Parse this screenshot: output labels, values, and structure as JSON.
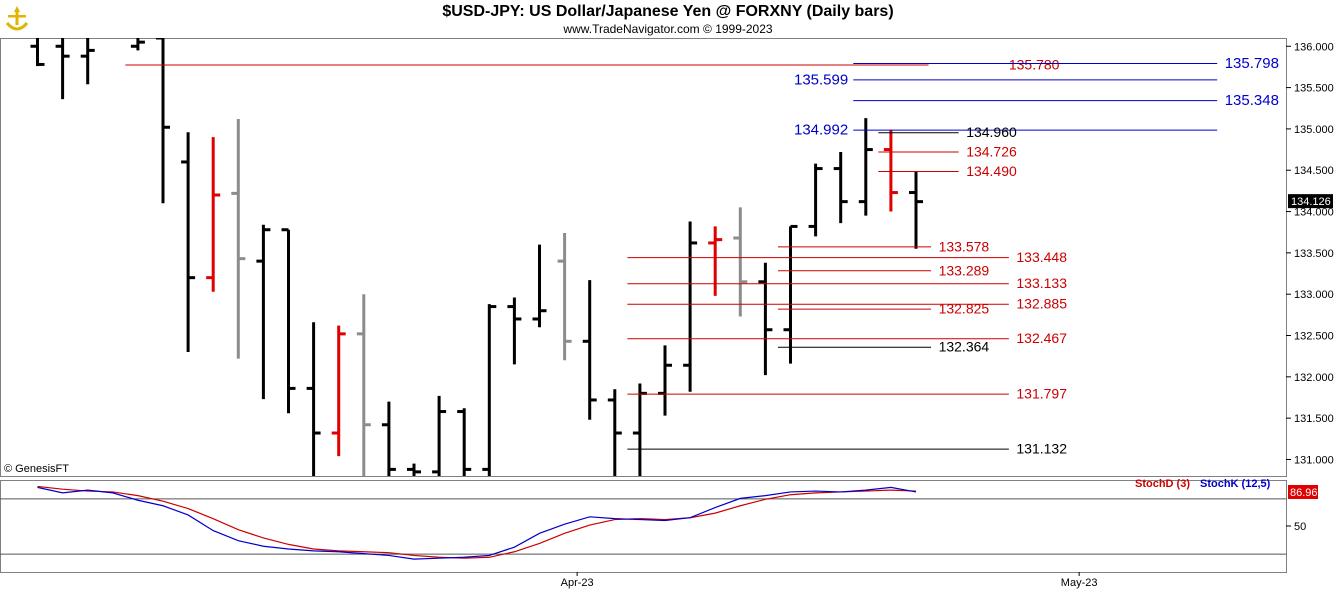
{
  "header": {
    "title": "$USD-JPY:  US Dollar/Japanese Yen @ FORXNY  (Daily bars)",
    "subtitle": "www.TradeNavigator.com © 1999-2023"
  },
  "credit": "© GenesisFT",
  "chart_data": [
    {
      "type": "ohlc",
      "ylim": [
        130.8,
        136.1
      ],
      "y_ticks": [
        "136.000",
        "135.500",
        "135.000",
        "134.500",
        "134.000",
        "133.500",
        "133.000",
        "132.500",
        "132.000",
        "131.500",
        "131.000"
      ],
      "y_tick_values": [
        136.0,
        135.5,
        135.0,
        134.5,
        134.0,
        133.5,
        133.0,
        132.5,
        132.0,
        131.5,
        131.0
      ],
      "x_labels": [
        {
          "label": "Apr-23",
          "index": 21.5
        },
        {
          "label": "May-23",
          "index": 41.5
        }
      ],
      "last_price": "134.126",
      "last_price_value": 134.126,
      "colors": {
        "normal": "#000000",
        "red": "#e00000",
        "gray": "#8c8c8c",
        "level_red": "#cc0000",
        "level_blue": "#0000cc",
        "level_black": "#000000"
      },
      "bars": [
        {
          "i": 0,
          "o": 136.0,
          "h": 136.1,
          "l": 135.76,
          "c": 135.78,
          "color": "normal"
        },
        {
          "i": 1,
          "o": 136.0,
          "h": 136.1,
          "l": 135.36,
          "c": 135.88,
          "color": "normal"
        },
        {
          "i": 2,
          "o": 135.88,
          "h": 136.1,
          "l": 135.54,
          "c": 135.95,
          "color": "normal"
        },
        {
          "i": 4,
          "o": 136.0,
          "h": 136.1,
          "l": 135.95,
          "c": 136.05,
          "color": "normal"
        },
        {
          "i": 5,
          "o": 136.1,
          "h": 136.1,
          "l": 134.1,
          "c": 135.02,
          "color": "normal"
        },
        {
          "i": 6,
          "o": 134.6,
          "h": 134.96,
          "l": 132.3,
          "c": 133.2,
          "color": "normal"
        },
        {
          "i": 7,
          "o": 133.2,
          "h": 134.9,
          "l": 133.03,
          "c": 134.2,
          "color": "red"
        },
        {
          "i": 8,
          "o": 134.22,
          "h": 135.12,
          "l": 132.22,
          "c": 133.43,
          "color": "gray"
        },
        {
          "i": 9,
          "o": 133.4,
          "h": 133.84,
          "l": 131.73,
          "c": 133.78,
          "color": "normal"
        },
        {
          "i": 10,
          "o": 133.78,
          "h": 133.78,
          "l": 131.56,
          "c": 131.86,
          "color": "normal"
        },
        {
          "i": 11,
          "o": 131.86,
          "h": 132.66,
          "l": 130.8,
          "c": 131.32,
          "color": "normal"
        },
        {
          "i": 12,
          "o": 131.32,
          "h": 132.62,
          "l": 131.04,
          "c": 132.52,
          "color": "red"
        },
        {
          "i": 13,
          "o": 132.52,
          "h": 133.0,
          "l": 130.8,
          "c": 131.42,
          "color": "gray"
        },
        {
          "i": 14,
          "o": 131.42,
          "h": 131.7,
          "l": 130.8,
          "c": 130.88,
          "color": "normal"
        },
        {
          "i": 15,
          "o": 130.88,
          "h": 130.95,
          "l": 130.8,
          "c": 130.85,
          "color": "normal"
        },
        {
          "i": 16,
          "o": 130.85,
          "h": 131.77,
          "l": 130.8,
          "c": 131.58,
          "color": "normal"
        },
        {
          "i": 17,
          "o": 131.58,
          "h": 131.62,
          "l": 130.8,
          "c": 130.88,
          "color": "normal"
        },
        {
          "i": 18,
          "o": 130.88,
          "h": 132.88,
          "l": 130.8,
          "c": 132.85,
          "color": "normal"
        },
        {
          "i": 19,
          "o": 132.85,
          "h": 132.96,
          "l": 132.15,
          "c": 132.7,
          "color": "normal"
        },
        {
          "i": 20,
          "o": 132.7,
          "h": 133.6,
          "l": 132.6,
          "c": 132.8,
          "color": "normal"
        },
        {
          "i": 21,
          "o": 133.4,
          "h": 133.74,
          "l": 132.2,
          "c": 132.43,
          "color": "gray"
        },
        {
          "i": 22,
          "o": 132.43,
          "h": 133.17,
          "l": 131.48,
          "c": 131.72,
          "color": "normal"
        },
        {
          "i": 23,
          "o": 131.72,
          "h": 131.85,
          "l": 130.8,
          "c": 131.32,
          "color": "normal"
        },
        {
          "i": 24,
          "o": 131.32,
          "h": 131.92,
          "l": 130.8,
          "c": 131.8,
          "color": "normal"
        },
        {
          "i": 25,
          "o": 131.8,
          "h": 132.38,
          "l": 131.53,
          "c": 132.14,
          "color": "normal"
        },
        {
          "i": 26,
          "o": 132.14,
          "h": 133.88,
          "l": 131.82,
          "c": 133.62,
          "color": "normal"
        },
        {
          "i": 27,
          "o": 133.62,
          "h": 133.82,
          "l": 132.98,
          "c": 133.66,
          "color": "red"
        },
        {
          "i": 28,
          "o": 133.68,
          "h": 134.05,
          "l": 132.73,
          "c": 133.15,
          "color": "gray"
        },
        {
          "i": 29,
          "o": 133.15,
          "h": 133.38,
          "l": 132.02,
          "c": 132.57,
          "color": "normal"
        },
        {
          "i": 30,
          "o": 132.57,
          "h": 133.82,
          "l": 132.16,
          "c": 133.82,
          "color": "normal"
        },
        {
          "i": 31,
          "o": 133.82,
          "h": 134.58,
          "l": 133.7,
          "c": 134.52,
          "color": "normal"
        },
        {
          "i": 32,
          "o": 134.52,
          "h": 134.72,
          "l": 133.86,
          "c": 134.12,
          "color": "normal"
        },
        {
          "i": 33,
          "o": 134.12,
          "h": 135.13,
          "l": 133.95,
          "c": 134.75,
          "color": "normal"
        },
        {
          "i": 34,
          "o": 134.75,
          "h": 134.98,
          "l": 134.0,
          "c": 134.23,
          "color": "red"
        },
        {
          "i": 35,
          "o": 134.23,
          "h": 134.48,
          "l": 133.55,
          "c": 134.12,
          "color": "normal"
        }
      ],
      "levels": [
        {
          "v": 135.78,
          "label": "135.780",
          "color": "red",
          "x0": 3.5,
          "x1": 35.5,
          "lx": 38.7,
          "align": "start"
        },
        {
          "v": 135.798,
          "label": "135.798",
          "color": "blue",
          "x0": 32.5,
          "x1": 47.0,
          "lx": 47.3,
          "align": "start"
        },
        {
          "v": 135.599,
          "label": "135.599",
          "color": "blue",
          "x0": 32.5,
          "x1": 47.0,
          "lx": 32.3,
          "align": "end"
        },
        {
          "v": 135.348,
          "label": "135.348",
          "color": "blue",
          "x0": 32.5,
          "x1": 47.0,
          "lx": 47.3,
          "align": "start"
        },
        {
          "v": 134.992,
          "label": "134.992",
          "color": "blue",
          "x0": 32.5,
          "x1": 47.0,
          "lx": 32.3,
          "align": "end"
        },
        {
          "v": 134.96,
          "label": "134.960",
          "color": "black",
          "x0": 33.5,
          "x1": 36.7,
          "lx": 37.0,
          "align": "start"
        },
        {
          "v": 134.726,
          "label": "134.726",
          "color": "red",
          "x0": 33.5,
          "x1": 36.7,
          "lx": 37.0,
          "align": "start"
        },
        {
          "v": 134.49,
          "label": "134.490",
          "color": "red",
          "x0": 33.5,
          "x1": 36.7,
          "lx": 37.0,
          "align": "start"
        },
        {
          "v": 133.578,
          "label": "133.578",
          "color": "red",
          "x0": 29.5,
          "x1": 35.6,
          "lx": 35.9,
          "align": "start"
        },
        {
          "v": 133.448,
          "label": "133.448",
          "color": "red",
          "x0": 23.5,
          "x1": 38.7,
          "lx": 39.0,
          "align": "start"
        },
        {
          "v": 133.289,
          "label": "133.289",
          "color": "red",
          "x0": 29.5,
          "x1": 35.6,
          "lx": 35.9,
          "align": "start"
        },
        {
          "v": 133.133,
          "label": "133.133",
          "color": "red",
          "x0": 23.5,
          "x1": 38.7,
          "lx": 39.0,
          "align": "start"
        },
        {
          "v": 132.885,
          "label": "132.885",
          "color": "red",
          "x0": 23.5,
          "x1": 38.7,
          "lx": 39.0,
          "align": "start"
        },
        {
          "v": 132.825,
          "label": "132.825",
          "color": "red",
          "x0": 29.5,
          "x1": 35.6,
          "lx": 35.9,
          "align": "start"
        },
        {
          "v": 132.467,
          "label": "132.467",
          "color": "red",
          "x0": 23.5,
          "x1": 38.7,
          "lx": 39.0,
          "align": "start"
        },
        {
          "v": 132.364,
          "label": "132.364",
          "color": "black",
          "x0": 29.5,
          "x1": 35.6,
          "lx": 35.9,
          "align": "start"
        },
        {
          "v": 131.797,
          "label": "131.797",
          "color": "red",
          "x0": 23.5,
          "x1": 38.7,
          "lx": 39.0,
          "align": "start"
        },
        {
          "v": 131.132,
          "label": "131.132",
          "color": "black",
          "x0": 23.5,
          "x1": 38.7,
          "lx": 39.0,
          "align": "start"
        }
      ]
    },
    {
      "type": "line",
      "ylim": [
        0,
        100
      ],
      "y_ticks": [
        "50"
      ],
      "y_tick_values": [
        50
      ],
      "h_lines": [
        80,
        20
      ],
      "last_value_label": "86.96",
      "last_value": 86.96,
      "legend": [
        {
          "label": "StochD (3)",
          "color": "#cc0000"
        },
        {
          "label": "StochK (12,5)",
          "color": "#0000cc"
        }
      ],
      "series": [
        {
          "name": "StochD (3)",
          "color": "#cc0000",
          "x": [
            0,
            1,
            2,
            3,
            4,
            5,
            6,
            7,
            8,
            9,
            10,
            11,
            12,
            13,
            14,
            15,
            16,
            17,
            18,
            19,
            20,
            21,
            22,
            23,
            24,
            25,
            26,
            27,
            28,
            29,
            30,
            31,
            32,
            33,
            34,
            35
          ],
          "values": [
            93,
            90,
            88,
            87,
            83,
            77,
            69,
            58,
            46,
            37,
            30,
            25,
            23,
            22,
            21,
            18,
            16,
            15,
            16,
            22,
            31,
            42,
            51,
            57,
            58,
            57,
            59,
            64,
            72,
            79,
            84,
            86,
            87,
            88,
            89,
            88
          ]
        },
        {
          "name": "StochK (12,5)",
          "color": "#0000cc",
          "x": [
            0,
            1,
            2,
            3,
            4,
            5,
            6,
            7,
            8,
            9,
            10,
            11,
            12,
            13,
            14,
            15,
            16,
            17,
            18,
            19,
            20,
            21,
            22,
            23,
            24,
            25,
            26,
            27,
            28,
            29,
            30,
            31,
            32,
            33,
            34,
            35
          ],
          "values": [
            92,
            86,
            89,
            86,
            78,
            72,
            62,
            45,
            34,
            28,
            25,
            23,
            22,
            20,
            18,
            14,
            15,
            16,
            18,
            27,
            42,
            52,
            60,
            58,
            57,
            56,
            59,
            70,
            80,
            83,
            87,
            88,
            87,
            89,
            92,
            87
          ]
        }
      ]
    }
  ]
}
